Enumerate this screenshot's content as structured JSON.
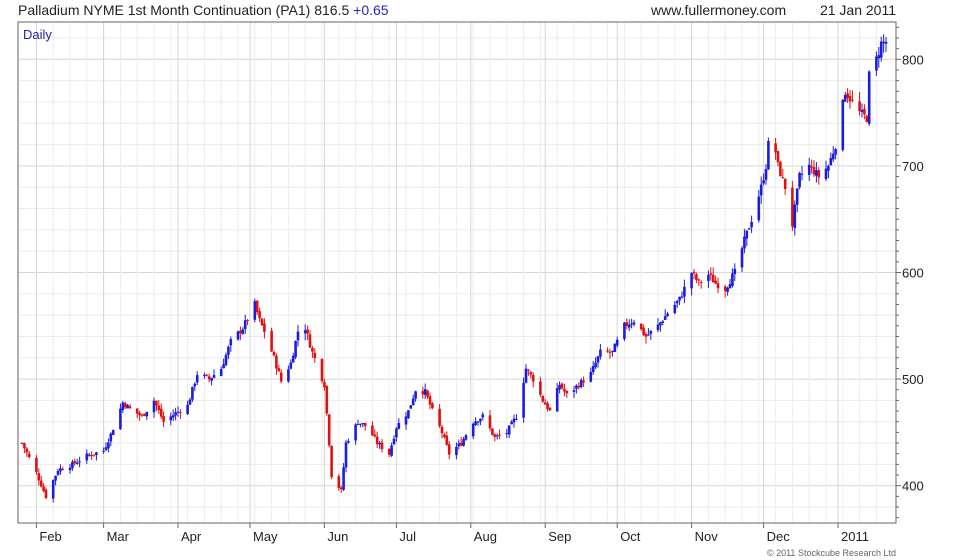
{
  "header": {
    "title": "Palladium NYME 1st Month Continuation (PA1) 816.5",
    "change": "+0.65",
    "site": "www.fullermoney.com",
    "date": "21 Jan 2011"
  },
  "footer": {
    "copyright": "© 2011 Stockcube Research Ltd"
  },
  "colors": {
    "up": "#1c1cdd",
    "down": "#e01010",
    "grid": "#d6d6d6",
    "frame": "#666666",
    "periodLabel": "#2323aa"
  },
  "chart_data": {
    "type": "candlestick",
    "title": "Palladium NYME 1st Month Continuation (PA1) 816.5 +0.65",
    "period_label": "Daily",
    "xlabel": "",
    "ylabel": "",
    "ylim": [
      365,
      835
    ],
    "y_ticks": [
      400,
      500,
      600,
      700,
      800
    ],
    "y_axis_position": "right",
    "x_tick_labels": [
      "Feb",
      "Mar",
      "Apr",
      "May",
      "Jun",
      "Jul",
      "Aug",
      "Sep",
      "Oct",
      "Nov",
      "Dec",
      "2011"
    ],
    "x_tick_dates": [
      "2010-02-01",
      "2010-03-01",
      "2010-04-01",
      "2010-05-01",
      "2010-06-01",
      "2010-07-01",
      "2010-08-01",
      "2010-09-01",
      "2010-10-01",
      "2010-11-01",
      "2010-12-01",
      "2011-01-01"
    ],
    "x_range": [
      "2010-01-26",
      "2011-01-21"
    ],
    "grid": true,
    "price_path": [
      [
        "2010-01-26",
        440
      ],
      [
        "2010-02-01",
        412
      ],
      [
        "2010-02-05",
        390
      ],
      [
        "2010-02-10",
        415
      ],
      [
        "2010-02-16",
        420
      ],
      [
        "2010-02-22",
        428
      ],
      [
        "2010-03-01",
        433
      ],
      [
        "2010-03-04",
        448
      ],
      [
        "2010-03-09",
        478
      ],
      [
        "2010-03-12",
        472
      ],
      [
        "2010-03-17",
        465
      ],
      [
        "2010-03-22",
        480
      ],
      [
        "2010-03-26",
        460
      ],
      [
        "2010-03-31",
        468
      ],
      [
        "2010-04-05",
        475
      ],
      [
        "2010-04-09",
        505
      ],
      [
        "2010-04-14",
        500
      ],
      [
        "2010-04-19",
        510
      ],
      [
        "2010-04-23",
        535
      ],
      [
        "2010-04-28",
        548
      ],
      [
        "2010-05-03",
        570
      ],
      [
        "2010-05-05",
        555
      ],
      [
        "2010-05-07",
        545
      ],
      [
        "2010-05-11",
        520
      ],
      [
        "2010-05-14",
        498
      ],
      [
        "2010-05-18",
        515
      ],
      [
        "2010-05-21",
        545
      ],
      [
        "2010-05-24",
        548
      ],
      [
        "2010-05-27",
        525
      ],
      [
        "2010-06-01",
        495
      ],
      [
        "2010-06-03",
        440
      ],
      [
        "2010-06-04",
        410
      ],
      [
        "2010-06-08",
        395
      ],
      [
        "2010-06-10",
        440
      ],
      [
        "2010-06-15",
        460
      ],
      [
        "2010-06-19",
        455
      ],
      [
        "2010-06-23",
        440
      ],
      [
        "2010-06-28",
        430
      ],
      [
        "2010-07-01",
        455
      ],
      [
        "2010-07-06",
        470
      ],
      [
        "2010-07-09",
        490
      ],
      [
        "2010-07-13",
        488
      ],
      [
        "2010-07-16",
        470
      ],
      [
        "2010-07-20",
        450
      ],
      [
        "2010-07-23",
        430
      ],
      [
        "2010-07-28",
        440
      ],
      [
        "2010-08-02",
        460
      ],
      [
        "2010-08-06",
        465
      ],
      [
        "2010-08-11",
        445
      ],
      [
        "2010-08-16",
        450
      ],
      [
        "2010-08-20",
        465
      ],
      [
        "2010-08-24",
        510
      ],
      [
        "2010-08-27",
        500
      ],
      [
        "2010-08-31",
        480
      ],
      [
        "2010-09-03",
        470
      ],
      [
        "2010-09-07",
        495
      ],
      [
        "2010-09-10",
        485
      ],
      [
        "2010-09-15",
        495
      ],
      [
        "2010-09-20",
        505
      ],
      [
        "2010-09-24",
        525
      ],
      [
        "2010-09-29",
        525
      ],
      [
        "2010-10-04",
        550
      ],
      [
        "2010-10-08",
        555
      ],
      [
        "2010-10-13",
        540
      ],
      [
        "2010-10-18",
        550
      ],
      [
        "2010-10-22",
        562
      ],
      [
        "2010-10-27",
        575
      ],
      [
        "2010-11-01",
        600
      ],
      [
        "2010-11-04",
        590
      ],
      [
        "2010-11-08",
        598
      ],
      [
        "2010-11-11",
        590
      ],
      [
        "2010-11-15",
        585
      ],
      [
        "2010-11-19",
        600
      ],
      [
        "2010-11-23",
        630
      ],
      [
        "2010-11-26",
        650
      ],
      [
        "2010-11-30",
        680
      ],
      [
        "2010-12-02",
        700
      ],
      [
        "2010-12-04",
        740
      ],
      [
        "2010-12-07",
        700
      ],
      [
        "2010-12-10",
        680
      ],
      [
        "2010-12-13",
        645
      ],
      [
        "2010-12-16",
        690
      ],
      [
        "2010-12-20",
        700
      ],
      [
        "2010-12-24",
        690
      ],
      [
        "2010-12-28",
        700
      ],
      [
        "2010-12-31",
        720
      ],
      [
        "2011-01-04",
        770
      ],
      [
        "2011-01-07",
        760
      ],
      [
        "2011-01-10",
        750
      ],
      [
        "2011-01-13",
        745
      ],
      [
        "2011-01-14",
        785
      ],
      [
        "2011-01-17",
        800
      ],
      [
        "2011-01-19",
        815
      ],
      [
        "2011-01-21",
        816.5
      ]
    ]
  }
}
